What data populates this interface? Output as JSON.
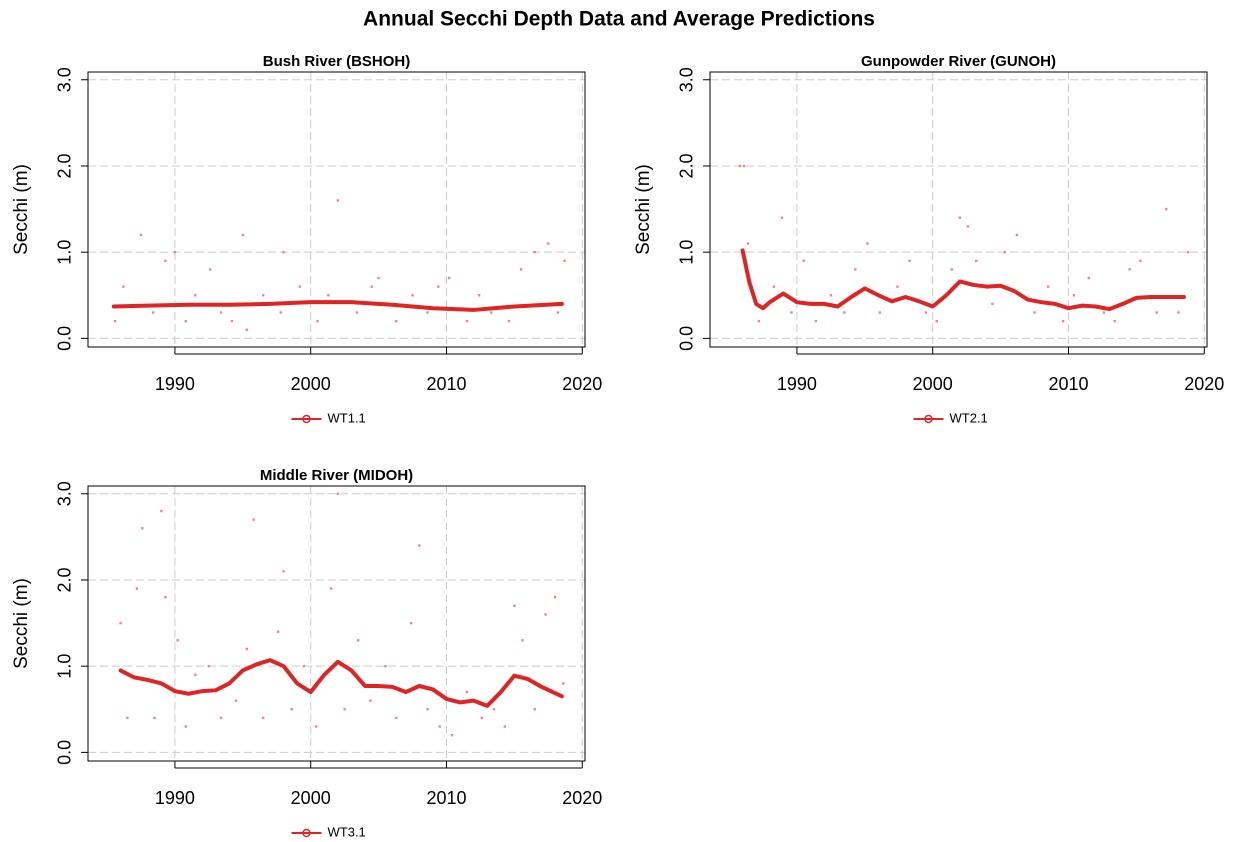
{
  "title": "Annual Secchi Depth Data and Average Predictions",
  "chart_data": [
    {
      "type": "line",
      "title": "Bush River (BSHOH)",
      "ylabel": "Secchi (m)",
      "xlim": [
        1983.6,
        2020.2
      ],
      "ylim": [
        -0.1,
        3.09
      ],
      "xticks": [
        1990,
        2000,
        2010,
        2020
      ],
      "yticks": [
        {
          "value": 0,
          "label": "0.0"
        },
        {
          "value": 1,
          "label": "1.0"
        },
        {
          "value": 2,
          "label": "2.0"
        },
        {
          "value": 3,
          "label": "3.0"
        }
      ],
      "grid": true,
      "points": {
        "color": "#ee8888",
        "x": [
          1985.6,
          1986.2,
          1987.5,
          1988.4,
          1989.3,
          1990,
          1990.8,
          1991.5,
          1992.6,
          1993.4,
          1994.2,
          1995,
          1995.3,
          1996.5,
          1997.8,
          1998,
          1999.2,
          2000.5,
          2001.3,
          2002,
          2003.4,
          2004.5,
          2005,
          2006.3,
          2007.5,
          2008.6,
          2009.4,
          2010.2,
          2011.5,
          2012.4,
          2013.3,
          2014.6,
          2015.5,
          2016.5,
          2017.5,
          2018.2,
          2018.7
        ],
        "y": [
          0.2,
          0.6,
          1.2,
          0.3,
          0.9,
          1.0,
          0.2,
          0.5,
          0.8,
          0.3,
          0.2,
          1.2,
          0.1,
          0.5,
          0.3,
          1.0,
          0.6,
          0.2,
          0.5,
          1.6,
          0.3,
          0.6,
          0.7,
          0.2,
          0.5,
          0.3,
          0.6,
          0.7,
          0.2,
          0.5,
          0.3,
          0.2,
          0.8,
          1.0,
          1.1,
          0.3,
          0.9
        ]
      },
      "series": [
        {
          "name": "WT1.1",
          "color": "#e02424",
          "x": [
            1985.5,
            1988,
            1991,
            1994,
            1997,
            2000,
            2003,
            2006,
            2009,
            2012,
            2015,
            2018.5
          ],
          "values": [
            0.37,
            0.38,
            0.39,
            0.39,
            0.4,
            0.42,
            0.42,
            0.39,
            0.35,
            0.33,
            0.37,
            0.4
          ]
        }
      ]
    },
    {
      "type": "line",
      "title": "Gunpowder River (GUNOH)",
      "ylabel": "Secchi (m)",
      "xlim": [
        1983.6,
        2020.2
      ],
      "ylim": [
        -0.1,
        3.09
      ],
      "xticks": [
        1990,
        2000,
        2010,
        2020
      ],
      "yticks": [
        {
          "value": 0,
          "label": "0.0"
        },
        {
          "value": 1,
          "label": "1.0"
        },
        {
          "value": 2,
          "label": "2.0"
        },
        {
          "value": 3,
          "label": "3.0"
        }
      ],
      "grid": true,
      "points": {
        "color": "#ee8888",
        "x": [
          1985.8,
          1986.1,
          1986.4,
          1987.2,
          1988.3,
          1988.9,
          1989.6,
          1990.5,
          1991.4,
          1992.5,
          1993.5,
          1994.3,
          1995.2,
          1996.1,
          1997.4,
          1998.3,
          1999.5,
          2000.3,
          2001.4,
          2002,
          2002.6,
          2003.2,
          2004.4,
          2005.3,
          2006.2,
          2007.5,
          2008.5,
          2009.6,
          2010.4,
          2011.5,
          2012.6,
          2013.4,
          2014.5,
          2015.3,
          2016.5,
          2017.2,
          2018.1,
          2018.8
        ],
        "y": [
          2.0,
          2.0,
          1.1,
          0.2,
          0.6,
          1.4,
          0.3,
          0.9,
          0.2,
          0.5,
          0.3,
          0.8,
          1.1,
          0.3,
          0.6,
          0.9,
          0.3,
          0.2,
          0.8,
          1.4,
          1.3,
          0.9,
          0.4,
          1.0,
          1.2,
          0.3,
          0.6,
          0.2,
          0.5,
          0.7,
          0.3,
          0.2,
          0.8,
          0.9,
          0.3,
          1.5,
          0.3,
          1.0
        ]
      },
      "series": [
        {
          "name": "WT2.1",
          "color": "#e02424",
          "x": [
            1986,
            1986.5,
            1987,
            1987.5,
            1988,
            1989,
            1990,
            1991,
            1992,
            1993,
            1994,
            1995,
            1996,
            1997,
            1998,
            1999,
            2000,
            2001,
            2002,
            2003,
            2004,
            2005,
            2006,
            2007,
            2008,
            2009,
            2010,
            2011,
            2012,
            2013,
            2014,
            2015,
            2016,
            2017,
            2018.5
          ],
          "values": [
            1.02,
            0.65,
            0.4,
            0.35,
            0.42,
            0.52,
            0.42,
            0.4,
            0.4,
            0.37,
            0.48,
            0.58,
            0.5,
            0.43,
            0.48,
            0.43,
            0.37,
            0.5,
            0.66,
            0.62,
            0.6,
            0.61,
            0.55,
            0.45,
            0.42,
            0.4,
            0.35,
            0.38,
            0.37,
            0.34,
            0.4,
            0.47,
            0.48,
            0.48,
            0.48
          ]
        }
      ]
    },
    {
      "type": "line",
      "title": "Middle River (MIDOH)",
      "ylabel": "Secchi (m)",
      "xlim": [
        1983.6,
        2020.2
      ],
      "ylim": [
        -0.1,
        3.09
      ],
      "xticks": [
        1990,
        2000,
        2010,
        2020
      ],
      "yticks": [
        {
          "value": 0,
          "label": "0.0"
        },
        {
          "value": 1,
          "label": "1.0"
        },
        {
          "value": 2,
          "label": "2.0"
        },
        {
          "value": 3,
          "label": "3.0"
        }
      ],
      "grid": true,
      "points": {
        "color": "#ee8888",
        "x": [
          1986,
          1986.5,
          1987.2,
          1987.6,
          1988.5,
          1989,
          1989.3,
          1990.2,
          1990.8,
          1991.5,
          1992.5,
          1993.4,
          1994.5,
          1995.3,
          1995.8,
          1996.5,
          1997.6,
          1998,
          1998.6,
          1999.5,
          2000.4,
          2001.5,
          2002,
          2002.5,
          2003.5,
          2004.4,
          2005.5,
          2006.3,
          2007.4,
          2008,
          2008.6,
          2009.5,
          2010.4,
          2011.5,
          2012.6,
          2013.5,
          2014.3,
          2015,
          2015.6,
          2016.5,
          2017.3,
          2018,
          2018.6
        ],
        "y": [
          1.5,
          0.4,
          1.9,
          2.6,
          0.4,
          2.8,
          1.8,
          1.3,
          0.3,
          0.9,
          1.0,
          0.4,
          0.6,
          1.2,
          2.7,
          0.4,
          1.4,
          2.1,
          0.5,
          1.0,
          0.3,
          1.9,
          3.0,
          0.5,
          1.3,
          0.6,
          1.0,
          0.4,
          1.5,
          2.4,
          0.5,
          0.3,
          0.2,
          0.7,
          0.4,
          0.5,
          0.3,
          1.7,
          1.3,
          0.5,
          1.6,
          1.8,
          0.8
        ]
      },
      "series": [
        {
          "name": "WT3.1",
          "color": "#e02424",
          "x": [
            1986,
            1987,
            1988,
            1989,
            1990,
            1991,
            1992,
            1993,
            1994,
            1995,
            1996,
            1997,
            1998,
            1999,
            2000,
            2001,
            2002,
            2003,
            2004,
            2005,
            2006,
            2007,
            2008,
            2009,
            2010,
            2011,
            2012,
            2013,
            2014,
            2015,
            2016,
            2017,
            2018.5
          ],
          "values": [
            0.95,
            0.87,
            0.84,
            0.8,
            0.71,
            0.68,
            0.71,
            0.72,
            0.8,
            0.95,
            1.02,
            1.07,
            1.0,
            0.8,
            0.7,
            0.9,
            1.05,
            0.95,
            0.77,
            0.77,
            0.76,
            0.7,
            0.77,
            0.73,
            0.62,
            0.58,
            0.6,
            0.54,
            0.7,
            0.89,
            0.85,
            0.76,
            0.65
          ]
        }
      ]
    }
  ]
}
